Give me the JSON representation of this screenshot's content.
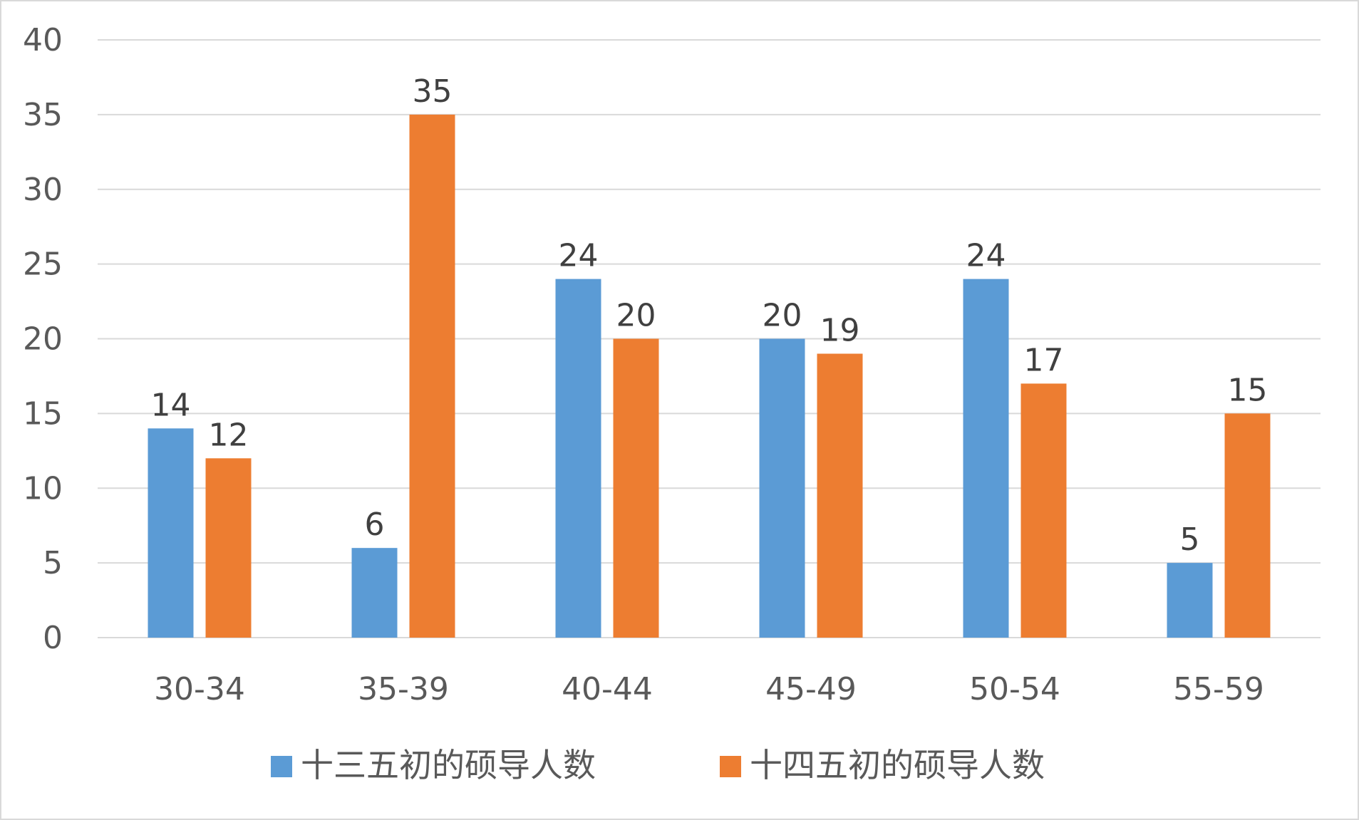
{
  "chart_data": {
    "type": "bar",
    "title": "",
    "xlabel": "",
    "ylabel": "",
    "categories": [
      "30-34",
      "35-39",
      "40-44",
      "45-49",
      "50-54",
      "55-59"
    ],
    "series": [
      {
        "name": "十三五初的硕导人数",
        "color": "#5b9bd5",
        "values": [
          14,
          6,
          24,
          20,
          24,
          5
        ]
      },
      {
        "name": "十四五初的硕导人数",
        "color": "#ed7d31",
        "values": [
          12,
          35,
          20,
          19,
          17,
          15
        ]
      }
    ],
    "ylim": [
      0,
      40
    ],
    "yticks": [
      0,
      5,
      10,
      15,
      20,
      25,
      30,
      35,
      40
    ],
    "grid": true,
    "data_labels": true,
    "legend_position": "bottom"
  }
}
